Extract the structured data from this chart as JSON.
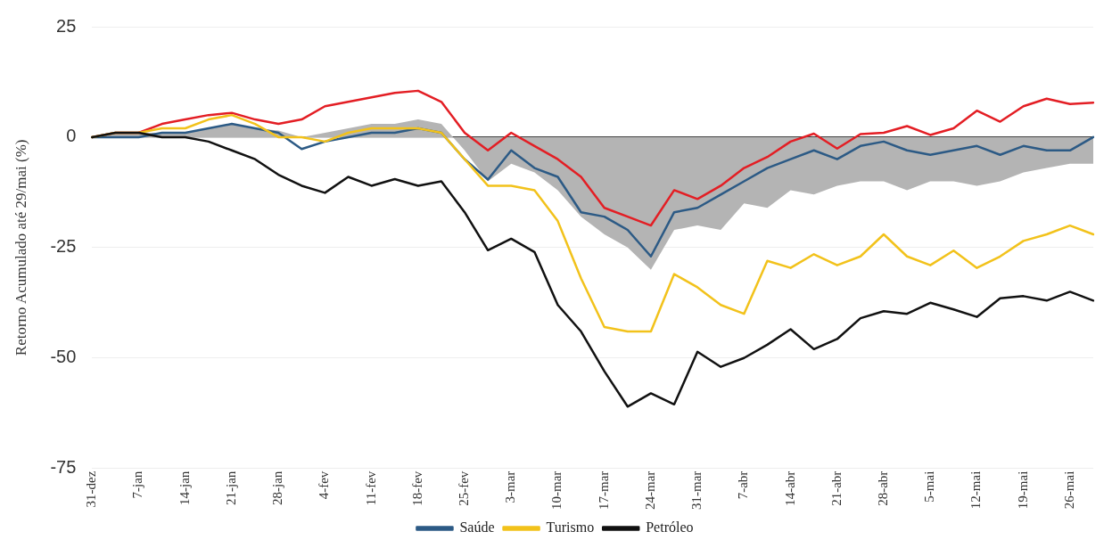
{
  "chart_data": {
    "type": "line",
    "ylabel": "Retorno Acumulado até 29/mai (%)",
    "categories": [
      "31-dez",
      null,
      "7-jan",
      null,
      "14-jan",
      null,
      "21-jan",
      null,
      "28-jan",
      null,
      "4-fev",
      null,
      "11-fev",
      null,
      "18-fev",
      null,
      "25-fev",
      null,
      "3-mar",
      null,
      "10-mar",
      null,
      "17-mar",
      null,
      "24-mar",
      null,
      "31-mar",
      null,
      "7-abr",
      null,
      "14-abr",
      null,
      "21-abr",
      null,
      "28-abr",
      null,
      "5-mai",
      null,
      "12-mai",
      null,
      "19-mai",
      null,
      "26-mai",
      null
    ],
    "series": [
      {
        "type": "area",
        "color": "#b4b4b4",
        "values": [
          0,
          1,
          1,
          1,
          1,
          2,
          3,
          2,
          1.5,
          0,
          1,
          2,
          3,
          3,
          4,
          3,
          -3,
          -10,
          -6,
          -8,
          -12,
          -18,
          -22,
          -25,
          -30,
          -21,
          -20,
          -21,
          -15,
          -16,
          -12,
          -13,
          -11,
          -10,
          -10,
          -12,
          -10,
          -10,
          -11,
          -10,
          -8,
          -7,
          -6,
          -6
        ]
      },
      {
        "color": "#e31e24",
        "values": [
          0,
          1,
          1,
          3,
          4,
          5,
          5.5,
          4,
          3,
          4,
          7,
          8,
          9,
          10,
          10.5,
          8,
          1,
          -3,
          1,
          -2,
          -5,
          -9,
          -16,
          -18,
          -20,
          -12,
          -14,
          -11,
          -7,
          -4.5,
          -1,
          0.8,
          -2.6,
          0.7,
          1,
          2.5,
          0.5,
          2,
          6,
          3.5,
          7,
          8.7,
          7.5,
          7.8
        ]
      },
      {
        "name": "Saúde",
        "color": "#2c5a85",
        "values": [
          0,
          0,
          0,
          1,
          1,
          2,
          3,
          2,
          1,
          -2.7,
          -1,
          0,
          1,
          1,
          2,
          1,
          -5,
          -9.6,
          -3,
          -7,
          -9,
          -17,
          -18,
          -21,
          -27,
          -17,
          -16,
          -13,
          -10,
          -7,
          -5,
          -3,
          -5,
          -2,
          -1,
          -3,
          -4,
          -3,
          -2,
          -4,
          -2,
          -3,
          -3,
          0
        ]
      },
      {
        "name": "Turismo",
        "color": "#f2c21b",
        "values": [
          0,
          1,
          1,
          2,
          2,
          4,
          5,
          3,
          0,
          0,
          -1,
          1,
          2,
          2,
          2,
          1,
          -5,
          -11,
          -11,
          -12,
          -19,
          -32,
          -43,
          -44,
          -44,
          -31,
          -34,
          -38,
          -40,
          -28,
          -29.6,
          -26.5,
          -29,
          -27,
          -22,
          -27,
          -29,
          -25.7,
          -29.6,
          -27,
          -23.5,
          -22,
          -20,
          -22
        ]
      },
      {
        "name": "Petróleo",
        "color": "#111111",
        "values": [
          0,
          1,
          1,
          0,
          0,
          -1,
          -3,
          -5,
          -8.5,
          -11,
          -12.6,
          -9,
          -11,
          -9.5,
          -11,
          -10,
          -17,
          -25.6,
          -23,
          -26,
          -38,
          -44,
          -53,
          -61,
          -58,
          -60.5,
          -48.6,
          -52,
          -50,
          -47,
          -43.5,
          -48,
          -45.7,
          -41,
          -39.4,
          -40,
          -37.5,
          -39,
          -40.7,
          -36.5,
          -36,
          -37,
          -35,
          -37
        ]
      }
    ],
    "ylim": [
      -75,
      25
    ],
    "yticks": [
      25,
      0,
      -25,
      -50,
      -75
    ],
    "grid": "y",
    "legend": "bottom",
    "marker": "none",
    "line_style": "solid"
  }
}
